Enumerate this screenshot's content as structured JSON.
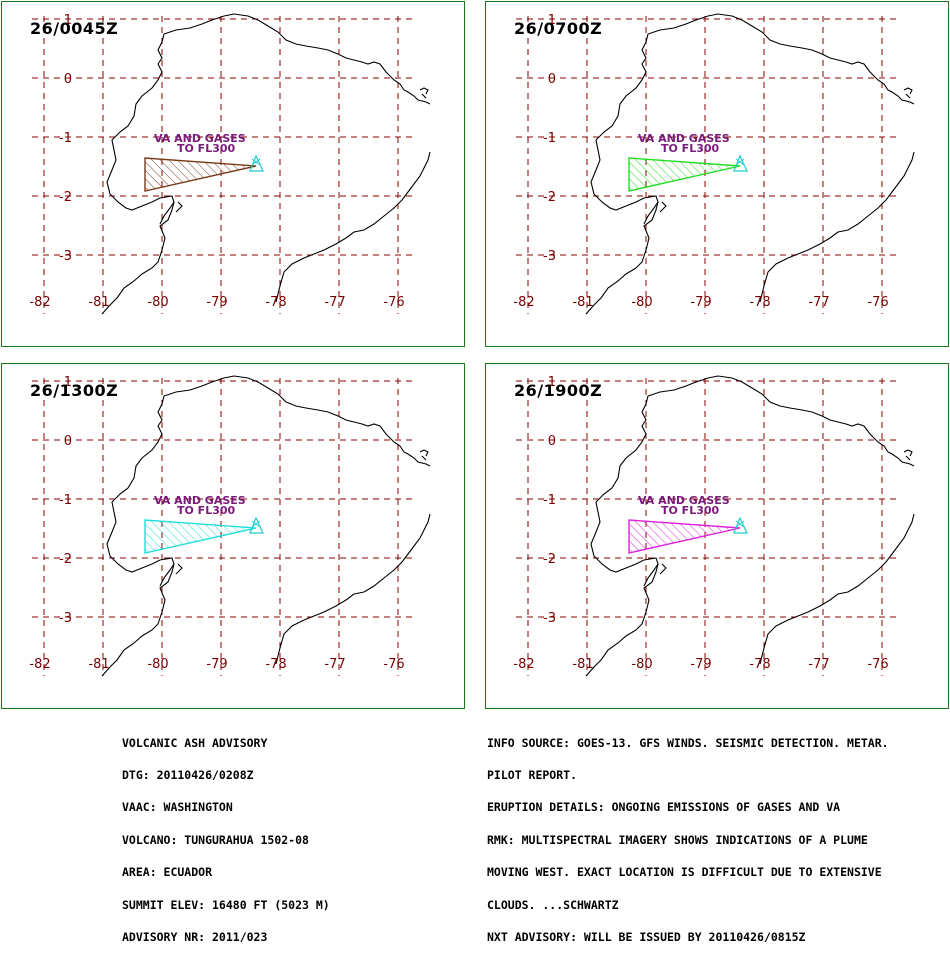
{
  "panels": [
    {
      "time": "26/0045Z",
      "plume_color": "#7a3b1a"
    },
    {
      "time": "26/0700Z",
      "plume_color": "#22dd22"
    },
    {
      "time": "26/1300Z",
      "plume_color": "#22dddd"
    },
    {
      "time": "26/1900Z",
      "plume_color": "#dd22dd"
    }
  ],
  "map": {
    "lat_labels": [
      "1",
      "0",
      "-1",
      "-2",
      "-3"
    ],
    "lon_labels": [
      "-82",
      "-81",
      "-80",
      "-79",
      "-78",
      "-77",
      "-76"
    ],
    "plume_label_line1": "VA  AND GASES",
    "plume_label_line2": "TO FL300",
    "grid_color": "#8b0000",
    "coast_color": "#000000",
    "volcano_color": "#22cccc"
  },
  "advisory_left": [
    "VOLCANIC ASH ADVISORY",
    "DTG: 20110426/0208Z",
    "VAAC: WASHINGTON",
    "VOLCANO: TUNGURAHUA 1502-08",
    "AREA: ECUADOR",
    "SUMMIT ELEV: 16480 FT (5023 M)",
    "ADVISORY NR: 2011/023"
  ],
  "advisory_right": [
    "INFO SOURCE: GOES-13. GFS WINDS. SEISMIC DETECTION. METAR.",
    "PILOT REPORT.",
    "ERUPTION DETAILS: ONGOING EMISSIONS OF GASES AND VA",
    "RMK: MULTISPECTRAL IMAGERY SHOWS INDICATIONS OF A PLUME",
    "MOVING WEST. EXACT LOCATION IS DIFFICULT DUE TO EXTENSIVE",
    "CLOUDS. ...SCHWARTZ",
    "NXT ADVISORY: WILL BE ISSUED BY 20110426/0815Z"
  ]
}
